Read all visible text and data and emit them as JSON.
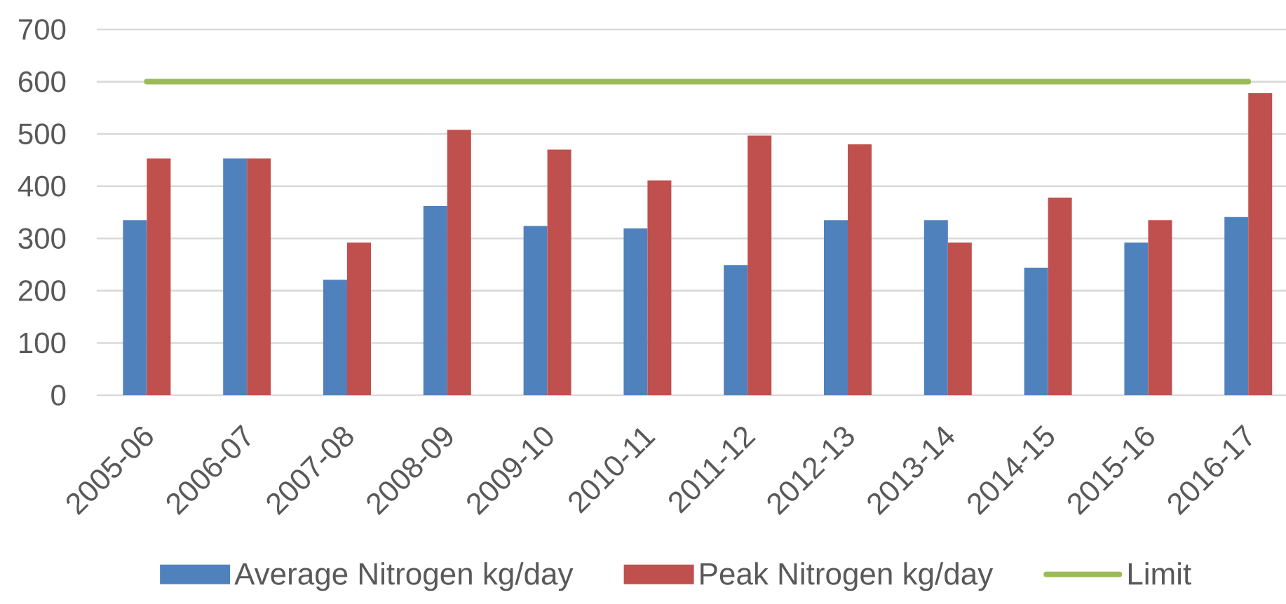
{
  "chart_data": {
    "type": "bar",
    "categories": [
      "2005-06",
      "2006-07",
      "2007-08",
      "2008-09",
      "2009-10",
      "2010-11",
      "2011-12",
      "2012-13",
      "2013-14",
      "2014-15",
      "2015-16",
      "2016-17"
    ],
    "series": [
      {
        "name": "Average Nitrogen kg/day",
        "color": "#4f81bd",
        "values": [
          335,
          453,
          221,
          362,
          324,
          319,
          249,
          335,
          335,
          244,
          292,
          341
        ]
      },
      {
        "name": "Peak Nitrogen kg/day",
        "color": "#c0504d",
        "values": [
          453,
          453,
          292,
          508,
          470,
          411,
          497,
          480,
          292,
          378,
          335,
          578
        ]
      },
      {
        "name": "Limit",
        "type": "line",
        "color": "#9bbb59",
        "values": [
          600,
          600,
          600,
          600,
          600,
          600,
          600,
          600,
          600,
          600,
          600,
          600
        ]
      }
    ],
    "ylim": [
      0,
      700
    ],
    "yticks": [
      0,
      100,
      200,
      300,
      400,
      500,
      600,
      700
    ],
    "grid": "y",
    "legend": "bottom",
    "marker": "none"
  }
}
